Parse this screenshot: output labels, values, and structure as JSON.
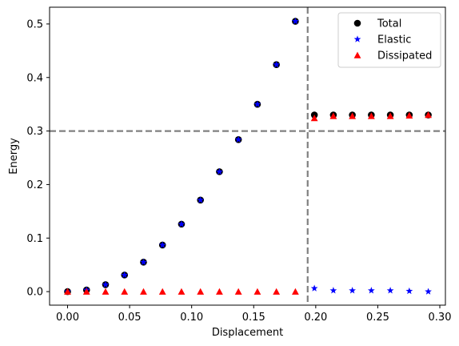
{
  "chart_data": {
    "type": "scatter",
    "xlabel": "Displacement",
    "ylabel": "Energy",
    "xlim": [
      -0.0145,
      0.3045
    ],
    "ylim": [
      -0.0253,
      0.5313
    ],
    "xticks": [
      0.0,
      0.05,
      0.1,
      0.15,
      0.2,
      0.25,
      0.3
    ],
    "xtick_labels": [
      "0.00",
      "0.05",
      "0.10",
      "0.15",
      "0.20",
      "0.25",
      "0.30"
    ],
    "yticks": [
      0.0,
      0.1,
      0.2,
      0.3,
      0.4,
      0.5
    ],
    "ytick_labels": [
      "0.0",
      "0.1",
      "0.2",
      "0.3",
      "0.4",
      "0.5"
    ],
    "grid": false,
    "legend_position": "top-right",
    "reference_lines": {
      "vertical_x": 0.1935,
      "horizontal_y": 0.3,
      "color": "#808080",
      "style": "dashed"
    },
    "series": [
      {
        "name": "Total",
        "marker": "circle",
        "color": "#000000",
        "x": [
          0.0,
          0.0153,
          0.0306,
          0.0459,
          0.0612,
          0.0765,
          0.0918,
          0.1071,
          0.1224,
          0.1377,
          0.153,
          0.1683,
          0.1836,
          0.1989,
          0.2142,
          0.2295,
          0.2448,
          0.2601,
          0.2754,
          0.2907
        ],
        "y": [
          0.0,
          0.003,
          0.013,
          0.031,
          0.055,
          0.087,
          0.126,
          0.171,
          0.224,
          0.284,
          0.35,
          0.424,
          0.505,
          0.33,
          0.33,
          0.33,
          0.33,
          0.33,
          0.33,
          0.33
        ]
      },
      {
        "name": "Elastic",
        "marker": "star",
        "color": "#0000ff",
        "x": [
          0.0,
          0.0153,
          0.0306,
          0.0459,
          0.0612,
          0.0765,
          0.0918,
          0.1071,
          0.1224,
          0.1377,
          0.153,
          0.1683,
          0.1836,
          0.1989,
          0.2142,
          0.2295,
          0.2448,
          0.2601,
          0.2754,
          0.2907
        ],
        "y": [
          0.0,
          0.003,
          0.013,
          0.031,
          0.055,
          0.087,
          0.126,
          0.171,
          0.224,
          0.284,
          0.35,
          0.424,
          0.505,
          0.006,
          0.002,
          0.002,
          0.002,
          0.002,
          0.001,
          0.0
        ]
      },
      {
        "name": "Dissipated",
        "marker": "triangle",
        "color": "#ff0000",
        "x": [
          0.0,
          0.0153,
          0.0306,
          0.0459,
          0.0612,
          0.0765,
          0.0918,
          0.1071,
          0.1224,
          0.1377,
          0.153,
          0.1683,
          0.1836,
          0.1989,
          0.2142,
          0.2295,
          0.2448,
          0.2601,
          0.2754,
          0.2907
        ],
        "y": [
          0.0,
          0.0,
          0.0,
          0.0,
          0.0,
          0.0,
          0.0,
          0.0,
          0.0,
          0.0,
          0.0,
          0.0,
          0.0,
          0.324,
          0.328,
          0.328,
          0.328,
          0.328,
          0.329,
          0.33
        ]
      }
    ]
  }
}
